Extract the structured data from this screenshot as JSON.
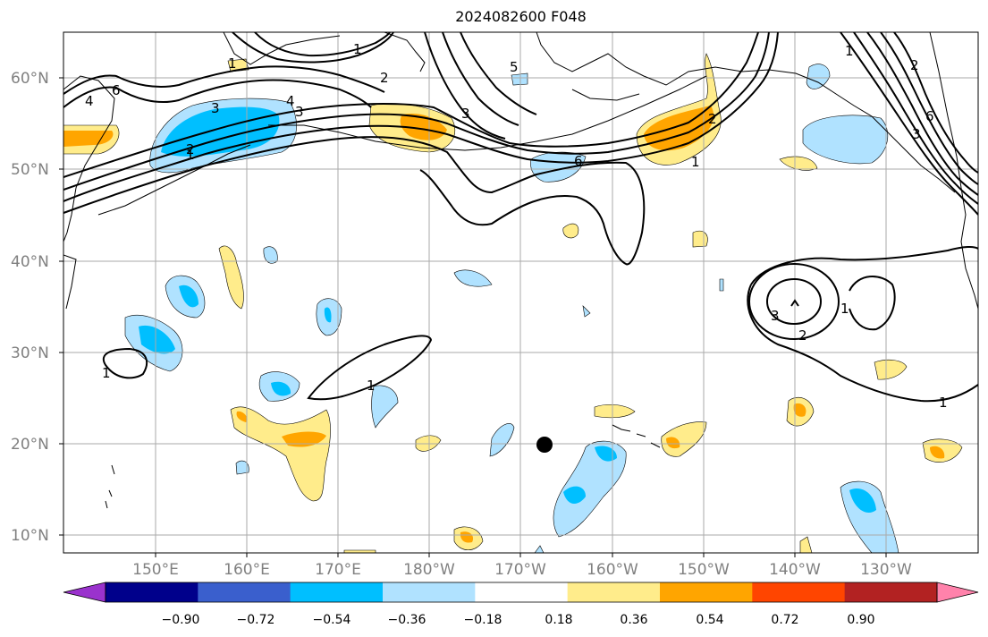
{
  "title": "2024082600 F048",
  "lat_labels": [
    "60°N",
    "50°N",
    "40°N",
    "30°N",
    "20°N",
    "10°N"
  ],
  "lon_labels": [
    "150°E",
    "160°E",
    "170°E",
    "180°W",
    "170°W",
    "160°W",
    "150°W",
    "140°W",
    "130°W"
  ],
  "colorbar": {
    "colors": [
      "#9a32cd",
      "#00008b",
      "#3a5fcd",
      "#00bfff",
      "#b0e2ff",
      "#ffffff",
      "#ffec8b",
      "#ffa500",
      "#ff4500",
      "#b22222",
      "#ff82ab"
    ],
    "tick_labels": [
      "−0.90",
      "−0.72",
      "−0.54",
      "−0.36",
      "−0.18",
      "0.18",
      "0.36",
      "0.54",
      "0.72",
      "0.90"
    ]
  },
  "contour_labels": [
    "1",
    "2",
    "3",
    "4",
    "5",
    "6",
    "1",
    "2",
    "3",
    "4",
    "6",
    "1",
    "2",
    "3",
    "1",
    "1",
    "6",
    "1",
    "2",
    "3",
    "1",
    "1",
    "3",
    "2",
    "1"
  ],
  "marker": "storm-center-dot"
}
